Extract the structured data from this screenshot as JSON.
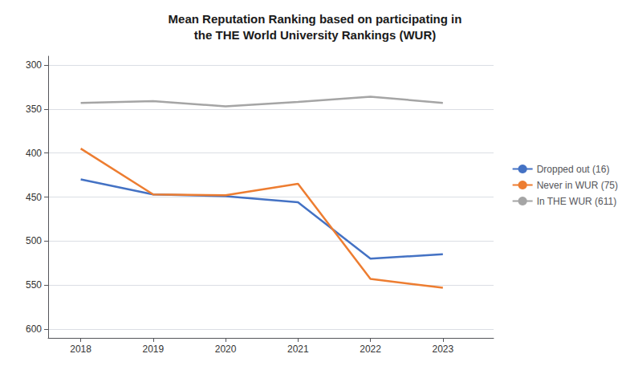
{
  "chart_data": {
    "type": "line",
    "title": "Mean Reputation Ranking based on participating in\nthe THE World University Rankings (WUR)",
    "x": [
      2018,
      2019,
      2020,
      2021,
      2022,
      2023
    ],
    "series": [
      {
        "name": "Dropped out (16)",
        "color": "#4472C4",
        "values": [
          430,
          447,
          449,
          456,
          520,
          515
        ]
      },
      {
        "name": "Never in WUR (75)",
        "color": "#ED7D31",
        "values": [
          395,
          447,
          448,
          435,
          543,
          553
        ]
      },
      {
        "name": "In THE WUR (611)",
        "color": "#A5A5A5",
        "values": [
          343,
          341,
          347,
          342,
          336,
          343
        ]
      }
    ],
    "xlim": [
      2017.55,
      2023.7
    ],
    "xticks": [
      2018,
      2019,
      2020,
      2021,
      2022,
      2023
    ],
    "ylim": [
      610,
      290
    ],
    "yticks": [
      300,
      350,
      400,
      450,
      500,
      550,
      600
    ],
    "grid": true,
    "legend": "right"
  }
}
